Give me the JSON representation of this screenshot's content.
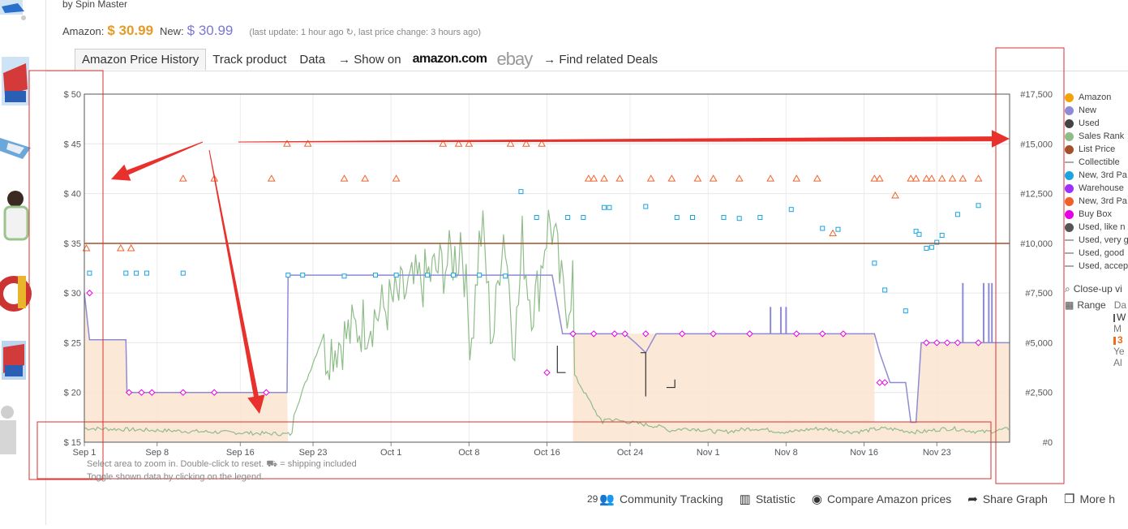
{
  "product": {
    "byline": "by Spin Master"
  },
  "prices": {
    "amazon_label": "Amazon:",
    "amazon_price": "$ 30.99",
    "new_label": "New:",
    "new_price": "$ 30.99",
    "update_text": "(last update: 1 hour ago",
    "price_change_text": ", last price change: 3 hours ago)"
  },
  "tabs": [
    "Amazon Price History",
    "Track product",
    "Data"
  ],
  "nav": {
    "show_on": "→ Show on",
    "amazon_logo": "amazon.com",
    "ebay_logo": "ebay",
    "related": "→ Find related Deals"
  },
  "chart_data": {
    "type": "line",
    "y_left_ticks": [
      "$ 50",
      "$ 45",
      "$ 40",
      "$ 35",
      "$ 30",
      "$ 25",
      "$ 20",
      "$ 15"
    ],
    "y_left_range": [
      15,
      50
    ],
    "y_right_ticks": [
      "#17,500",
      "#15,000",
      "#12,500",
      "#10,000",
      "#7,500",
      "#5,000",
      "#2,500",
      "#0"
    ],
    "y_right_range": [
      0,
      17500
    ],
    "x_ticks": [
      "Sep 1",
      "Sep 8",
      "Sep 16",
      "Sep 23",
      "Oct 1",
      "Oct 8",
      "Oct 16",
      "Oct 24",
      "Nov 1",
      "Nov 8",
      "Nov 16",
      "Nov 23"
    ],
    "list_price": 34.99,
    "series": [
      {
        "name": "Amazon",
        "color": "#f0a30a"
      },
      {
        "name": "New",
        "color": "#8e8bd6",
        "values": [
          [
            0,
            30
          ],
          [
            0.5,
            25.3
          ],
          [
            4,
            25.3
          ],
          [
            4.1,
            20
          ],
          [
            19.5,
            20
          ],
          [
            19.6,
            31.8
          ],
          [
            45,
            31.8
          ],
          [
            46,
            25.9
          ],
          [
            52,
            25.9
          ],
          [
            53,
            25
          ],
          [
            54,
            24
          ],
          [
            55,
            25.9
          ],
          [
            76,
            25.9
          ],
          [
            76.5,
            24
          ],
          [
            77.5,
            21
          ],
          [
            79,
            21
          ],
          [
            79.5,
            17
          ],
          [
            80,
            17
          ],
          [
            80.5,
            25
          ],
          [
            89,
            25
          ]
        ]
      },
      {
        "name": "Used",
        "color": "#444"
      },
      {
        "name": "Sales Rank",
        "color": "#8fbd8a"
      },
      {
        "name": "List Price",
        "color": "#a0522d"
      },
      {
        "name": "Collectible",
        "color": "#aaa"
      },
      {
        "name": "New, 3rd Pa",
        "color": "#1aa4e0",
        "points": [
          [
            0.5,
            32
          ],
          [
            4,
            32
          ],
          [
            5,
            32
          ],
          [
            6,
            32
          ],
          [
            9.5,
            32
          ],
          [
            19.6,
            31.8
          ],
          [
            21,
            31.8
          ],
          [
            25,
            31.7
          ],
          [
            28,
            31.8
          ],
          [
            30,
            31.8
          ],
          [
            33,
            31.8
          ],
          [
            35.5,
            31.8
          ],
          [
            38,
            31.8
          ],
          [
            40.5,
            31.7
          ],
          [
            42,
            40.2
          ],
          [
            43.5,
            37.6
          ],
          [
            46.5,
            37.6
          ],
          [
            48,
            37.6
          ],
          [
            50,
            38.6
          ],
          [
            50.5,
            38.6
          ],
          [
            54,
            38.7
          ],
          [
            57,
            37.6
          ],
          [
            58.5,
            37.6
          ],
          [
            61.5,
            37.6
          ],
          [
            63,
            37.5
          ],
          [
            65,
            37.6
          ],
          [
            68,
            38.4
          ],
          [
            71,
            36.5
          ],
          [
            72.5,
            36.4
          ],
          [
            76,
            33
          ],
          [
            77,
            30.3
          ],
          [
            79,
            28.2
          ],
          [
            80,
            36.2
          ],
          [
            80.3,
            35.9
          ],
          [
            81,
            34.5
          ],
          [
            81.5,
            34.6
          ],
          [
            82,
            35.1
          ],
          [
            82.5,
            35.8
          ],
          [
            84,
            37.9
          ],
          [
            86,
            38.8
          ]
        ]
      },
      {
        "name": "Warehouse",
        "color": "#9b30ff"
      },
      {
        "name": "New, 3rd Pa",
        "color": "#f0602a",
        "triangles": [
          [
            0.2,
            34.5
          ],
          [
            3.5,
            34.5
          ],
          [
            4.5,
            34.5
          ],
          [
            9.5,
            41.5
          ],
          [
            12.5,
            41.5
          ],
          [
            18,
            41.5
          ],
          [
            19.5,
            45
          ],
          [
            21.5,
            45
          ],
          [
            25,
            41.5
          ],
          [
            27,
            41.5
          ],
          [
            30,
            41.5
          ],
          [
            34.5,
            45
          ],
          [
            36,
            45
          ],
          [
            37,
            45
          ],
          [
            41,
            45
          ],
          [
            42.5,
            45
          ],
          [
            44,
            45
          ],
          [
            48.5,
            41.5
          ],
          [
            49,
            41.5
          ],
          [
            50,
            41.5
          ],
          [
            51.5,
            41.5
          ],
          [
            54.5,
            41.5
          ],
          [
            56.5,
            41.5
          ],
          [
            59,
            41.5
          ],
          [
            60.5,
            41.5
          ],
          [
            63,
            41.5
          ],
          [
            66,
            41.5
          ],
          [
            68.5,
            41.5
          ],
          [
            70.5,
            41.5
          ],
          [
            72,
            36
          ],
          [
            76,
            41.5
          ],
          [
            76.5,
            41.5
          ],
          [
            78,
            39.8
          ],
          [
            79.5,
            41.5
          ],
          [
            80,
            41.5
          ],
          [
            81,
            41.5
          ],
          [
            81.5,
            41.5
          ],
          [
            82.5,
            41.5
          ],
          [
            83.5,
            41.5
          ],
          [
            84.5,
            41.5
          ],
          [
            86,
            41.5
          ]
        ]
      },
      {
        "name": "Buy Box",
        "color": "#e600e6",
        "diamonds": [
          [
            0.5,
            30
          ],
          [
            4.3,
            20
          ],
          [
            5.5,
            20
          ],
          [
            6.5,
            20
          ],
          [
            9.5,
            20
          ],
          [
            12.5,
            20
          ],
          [
            17.5,
            20
          ],
          [
            44.5,
            22
          ],
          [
            47,
            25.9
          ],
          [
            49,
            25.9
          ],
          [
            51,
            25.9
          ],
          [
            52,
            25.9
          ],
          [
            54,
            25.9
          ],
          [
            57.5,
            25.9
          ],
          [
            60.5,
            25.9
          ],
          [
            64,
            25.9
          ],
          [
            68.5,
            25.9
          ],
          [
            71,
            25.9
          ],
          [
            73,
            25.9
          ],
          [
            76.5,
            21
          ],
          [
            77,
            21
          ],
          [
            81,
            25
          ],
          [
            82,
            25
          ],
          [
            83,
            25
          ],
          [
            84,
            25
          ],
          [
            86,
            25
          ]
        ]
      },
      {
        "name": "Used, like n",
        "color": "#555"
      },
      {
        "name": "Used, very g",
        "color": "#aaa"
      },
      {
        "name": "Used, good",
        "color": "#aaa"
      },
      {
        "name": "Used, accep",
        "color": "#aaa"
      }
    ]
  },
  "legend_labels": [
    "Amazon",
    "New",
    "Used",
    "Sales Rank",
    "List Price",
    "Collectible",
    "New, 3rd Pa",
    "Warehouse",
    "New, 3rd Pa",
    "Buy Box",
    "Used, like n",
    "Used, very g",
    "Used, good",
    "Used, accep"
  ],
  "legend_colors": [
    "#f0a30a",
    "#8e8bd6",
    "#444",
    "#8fbd8a",
    "#a0522d",
    "#aaa",
    "#1aa4e0",
    "#9b30ff",
    "#f0602a",
    "#e600e6",
    "#555",
    "#aaa",
    "#aaa",
    "#aaa"
  ],
  "tools": {
    "closeup": "Close-up vi",
    "range": "Range",
    "range_items": [
      "Da",
      "W",
      "M",
      "3",
      "Ye",
      "Al"
    ]
  },
  "hint": {
    "line1": "Select area to zoom in. Double-click to reset.",
    "shipping": "= shipping included",
    "line2": "Toggle shown data by clicking on the legend."
  },
  "footer": {
    "community_count": "29",
    "community": "Community Tracking",
    "statistic": "Statistic",
    "compare": "Compare Amazon prices",
    "share": "Share Graph",
    "more": "More h"
  }
}
